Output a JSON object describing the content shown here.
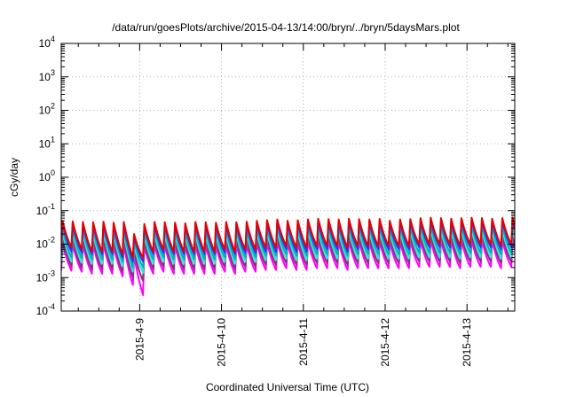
{
  "chart_data": {
    "type": "line",
    "title": "/data/run/goesPlots/archive/2015-04-13/14:00/bryn/../bryn/5daysMars.plot",
    "xlabel": "Coordinated Universal Time (UTC)",
    "ylabel": "cGy/day",
    "yscale": "log",
    "ylim": [
      0.0001,
      10000
    ],
    "xlim": [
      "2015-04-08T01:00",
      "2015-04-13T14:00"
    ],
    "grid": true,
    "y_ticks": [
      {
        "value": 0.0001,
        "base": "10",
        "exp": "-4"
      },
      {
        "value": 0.001,
        "base": "10",
        "exp": "-3"
      },
      {
        "value": 0.01,
        "base": "10",
        "exp": "-2"
      },
      {
        "value": 0.1,
        "base": "10",
        "exp": "-1"
      },
      {
        "value": 1,
        "base": "10",
        "exp": "0"
      },
      {
        "value": 10,
        "base": "10",
        "exp": "1"
      },
      {
        "value": 100,
        "base": "10",
        "exp": "2"
      },
      {
        "value": 1000,
        "base": "10",
        "exp": "3"
      },
      {
        "value": 10000,
        "base": "10",
        "exp": "4"
      }
    ],
    "x_ticks": [
      {
        "value": "2015-04-09T00:00",
        "label": "2015-4-9"
      },
      {
        "value": "2015-04-10T00:00",
        "label": "2015-4-10"
      },
      {
        "value": "2015-04-11T00:00",
        "label": "2015-4-11"
      },
      {
        "value": "2015-04-12T00:00",
        "label": "2015-4-12"
      },
      {
        "value": "2015-04-13T00:00",
        "label": "2015-4-13"
      }
    ],
    "cycle_hours": 3,
    "series": [
      {
        "color": "#e60000",
        "peak_values": [
          0.05,
          0.048,
          0.046,
          0.045,
          0.047,
          0.044,
          0.046,
          0.02,
          0.04,
          0.046,
          0.045,
          0.044,
          0.042,
          0.046,
          0.045,
          0.044,
          0.046,
          0.045,
          0.047,
          0.05,
          0.052,
          0.055,
          0.05,
          0.052,
          0.055,
          0.058,
          0.056,
          0.055,
          0.058,
          0.056,
          0.055,
          0.057,
          0.05,
          0.055,
          0.056,
          0.06,
          0.062,
          0.06,
          0.058,
          0.06,
          0.062,
          0.06,
          0.058,
          0.06,
          0.062,
          0.058
        ],
        "trough_values": [
          0.008,
          0.007,
          0.006,
          0.006,
          0.006,
          0.005,
          0.004,
          0.004,
          0.006,
          0.007,
          0.006,
          0.006,
          0.006,
          0.006,
          0.006,
          0.007,
          0.006,
          0.007,
          0.007,
          0.008,
          0.008,
          0.009,
          0.008,
          0.008,
          0.009,
          0.009,
          0.009,
          0.008,
          0.009,
          0.009,
          0.009,
          0.009,
          0.009,
          0.009,
          0.01,
          0.01,
          0.01,
          0.01,
          0.009,
          0.01,
          0.01,
          0.01,
          0.009,
          0.01,
          0.01,
          0.01
        ]
      },
      {
        "color": "#3030ff",
        "peak_values": [
          0.042,
          0.04,
          0.038,
          0.037,
          0.039,
          0.036,
          0.038,
          0.017,
          0.034,
          0.038,
          0.037,
          0.036,
          0.035,
          0.038,
          0.037,
          0.036,
          0.038,
          0.037,
          0.039,
          0.042,
          0.043,
          0.046,
          0.042,
          0.043,
          0.046,
          0.048,
          0.047,
          0.046,
          0.048,
          0.047,
          0.046,
          0.047,
          0.042,
          0.046,
          0.047,
          0.05,
          0.052,
          0.05,
          0.048,
          0.05,
          0.052,
          0.05,
          0.048,
          0.05,
          0.052,
          0.048
        ],
        "trough_values": [
          0.006,
          0.0055,
          0.005,
          0.005,
          0.005,
          0.004,
          0.003,
          0.003,
          0.005,
          0.0055,
          0.005,
          0.005,
          0.005,
          0.005,
          0.005,
          0.0055,
          0.005,
          0.0055,
          0.0055,
          0.006,
          0.006,
          0.007,
          0.006,
          0.006,
          0.007,
          0.007,
          0.007,
          0.006,
          0.007,
          0.007,
          0.007,
          0.007,
          0.007,
          0.007,
          0.008,
          0.008,
          0.008,
          0.008,
          0.007,
          0.008,
          0.008,
          0.008,
          0.007,
          0.008,
          0.008,
          0.008
        ]
      },
      {
        "color": "#00b4b4",
        "peak_values": [
          0.03,
          0.029,
          0.028,
          0.027,
          0.028,
          0.026,
          0.027,
          0.013,
          0.025,
          0.028,
          0.027,
          0.026,
          0.025,
          0.027,
          0.027,
          0.026,
          0.027,
          0.027,
          0.028,
          0.03,
          0.031,
          0.033,
          0.03,
          0.031,
          0.033,
          0.035,
          0.034,
          0.033,
          0.035,
          0.034,
          0.033,
          0.034,
          0.03,
          0.033,
          0.034,
          0.036,
          0.037,
          0.036,
          0.035,
          0.036,
          0.037,
          0.036,
          0.035,
          0.036,
          0.037,
          0.035
        ],
        "trough_values": [
          0.004,
          0.0038,
          0.0035,
          0.0035,
          0.0035,
          0.003,
          0.002,
          0.002,
          0.0035,
          0.004,
          0.0035,
          0.0035,
          0.0035,
          0.0035,
          0.0035,
          0.004,
          0.0035,
          0.004,
          0.004,
          0.0045,
          0.0045,
          0.005,
          0.0045,
          0.0045,
          0.005,
          0.005,
          0.005,
          0.0045,
          0.005,
          0.005,
          0.005,
          0.005,
          0.005,
          0.005,
          0.0055,
          0.0055,
          0.0055,
          0.0055,
          0.005,
          0.0055,
          0.0055,
          0.0055,
          0.005,
          0.0055,
          0.0055,
          0.0055
        ]
      },
      {
        "color": "#2ee8d8",
        "peak_values": [
          0.022,
          0.021,
          0.02,
          0.02,
          0.021,
          0.019,
          0.02,
          0.009,
          0.018,
          0.02,
          0.02,
          0.019,
          0.018,
          0.02,
          0.02,
          0.019,
          0.02,
          0.02,
          0.021,
          0.022,
          0.023,
          0.024,
          0.022,
          0.023,
          0.024,
          0.025,
          0.025,
          0.024,
          0.025,
          0.025,
          0.024,
          0.025,
          0.022,
          0.024,
          0.025,
          0.026,
          0.027,
          0.026,
          0.025,
          0.026,
          0.027,
          0.026,
          0.025,
          0.026,
          0.027,
          0.025
        ],
        "trough_values": [
          0.003,
          0.0028,
          0.0026,
          0.0026,
          0.0026,
          0.0022,
          0.0015,
          0.0014,
          0.0026,
          0.003,
          0.0026,
          0.0026,
          0.0026,
          0.0026,
          0.0026,
          0.003,
          0.0026,
          0.003,
          0.003,
          0.0033,
          0.0033,
          0.0037,
          0.0033,
          0.0033,
          0.0037,
          0.0037,
          0.0037,
          0.0033,
          0.0037,
          0.0037,
          0.0037,
          0.0037,
          0.0037,
          0.0037,
          0.004,
          0.004,
          0.004,
          0.004,
          0.0037,
          0.004,
          0.004,
          0.004,
          0.0037,
          0.004,
          0.004,
          0.004
        ]
      },
      {
        "color": "#8e2e7c",
        "peak_values": [
          0.015,
          0.014,
          0.013,
          0.013,
          0.014,
          0.012,
          0.013,
          0.006,
          0.012,
          0.013,
          0.013,
          0.012,
          0.012,
          0.013,
          0.013,
          0.012,
          0.013,
          0.013,
          0.014,
          0.015,
          0.015,
          0.016,
          0.015,
          0.015,
          0.016,
          0.017,
          0.017,
          0.016,
          0.017,
          0.017,
          0.016,
          0.017,
          0.015,
          0.016,
          0.017,
          0.018,
          0.018,
          0.018,
          0.017,
          0.018,
          0.018,
          0.018,
          0.017,
          0.018,
          0.018,
          0.017
        ],
        "trough_values": [
          0.0022,
          0.002,
          0.0018,
          0.0018,
          0.0018,
          0.0015,
          0.001,
          0.0008,
          0.0018,
          0.0021,
          0.0018,
          0.0018,
          0.0018,
          0.0018,
          0.0018,
          0.0021,
          0.0018,
          0.0021,
          0.0021,
          0.0024,
          0.0024,
          0.0027,
          0.0024,
          0.0024,
          0.0027,
          0.0027,
          0.0027,
          0.0024,
          0.0027,
          0.0027,
          0.0027,
          0.0027,
          0.0027,
          0.0027,
          0.003,
          0.003,
          0.003,
          0.003,
          0.0027,
          0.003,
          0.003,
          0.003,
          0.0027,
          0.003,
          0.003,
          0.003
        ]
      },
      {
        "color": "#ff00ff",
        "peak_values": [
          0.011,
          0.01,
          0.0095,
          0.0095,
          0.01,
          0.009,
          0.0095,
          0.0045,
          0.009,
          0.0095,
          0.0095,
          0.009,
          0.009,
          0.0095,
          0.0095,
          0.009,
          0.0095,
          0.0095,
          0.01,
          0.011,
          0.011,
          0.012,
          0.011,
          0.011,
          0.012,
          0.0125,
          0.0125,
          0.012,
          0.0125,
          0.0125,
          0.012,
          0.0125,
          0.011,
          0.012,
          0.0125,
          0.013,
          0.013,
          0.013,
          0.0125,
          0.013,
          0.013,
          0.013,
          0.0125,
          0.013,
          0.013,
          0.0125
        ],
        "trough_values": [
          0.0016,
          0.0015,
          0.0013,
          0.0013,
          0.0013,
          0.0011,
          0.0006,
          0.0003,
          0.0013,
          0.0015,
          0.0013,
          0.0013,
          0.0013,
          0.0013,
          0.0013,
          0.0015,
          0.0013,
          0.0015,
          0.0015,
          0.0017,
          0.0017,
          0.0019,
          0.0017,
          0.0017,
          0.0019,
          0.0019,
          0.0019,
          0.0017,
          0.0019,
          0.0019,
          0.0019,
          0.0019,
          0.0019,
          0.0019,
          0.0021,
          0.0021,
          0.0021,
          0.0021,
          0.0019,
          0.0021,
          0.0021,
          0.0021,
          0.0019,
          0.0021,
          0.0021,
          0.0021
        ]
      }
    ]
  }
}
